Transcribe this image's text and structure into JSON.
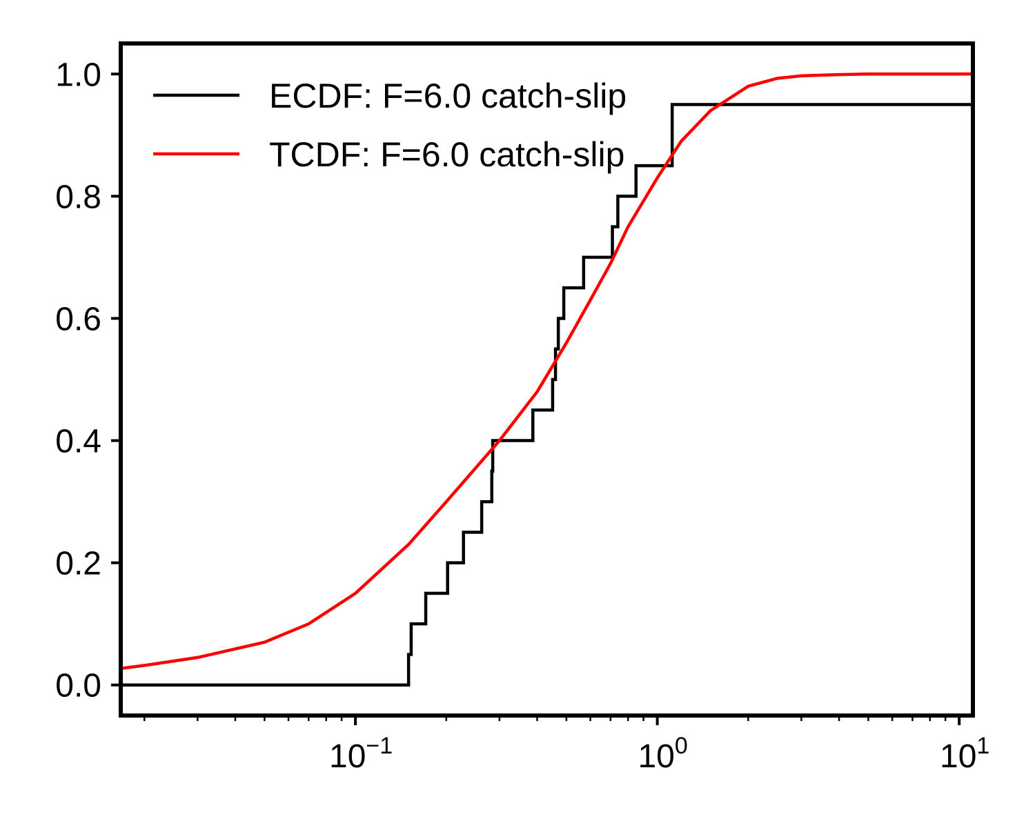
{
  "chart_data": {
    "type": "line",
    "title": "",
    "xlabel": "",
    "ylabel": "",
    "x_scale": "log",
    "xlim": [
      0.0167,
      11.1
    ],
    "ylim": [
      -0.05,
      1.05
    ],
    "grid": false,
    "legend_position": "top-left",
    "x_ticks": [
      {
        "value": 0.1,
        "base": "10",
        "exp": "−1"
      },
      {
        "value": 1,
        "base": "10",
        "exp": "0"
      },
      {
        "value": 10,
        "base": "10",
        "exp": "1"
      }
    ],
    "y_ticks": [
      {
        "value": 0.0,
        "label": "0.0"
      },
      {
        "value": 0.2,
        "label": "0.2"
      },
      {
        "value": 0.4,
        "label": "0.4"
      },
      {
        "value": 0.6,
        "label": "0.6"
      },
      {
        "value": 0.8,
        "label": "0.8"
      },
      {
        "value": 1.0,
        "label": "1.0"
      }
    ],
    "series": [
      {
        "name": "ECDF: F=6.0 catch-slip",
        "kind": "step",
        "color": "#000000",
        "x": [
          0.0167,
          0.15,
          0.153,
          0.171,
          0.202,
          0.228,
          0.262,
          0.283,
          0.285,
          0.387,
          0.45,
          0.46,
          0.47,
          0.49,
          0.57,
          0.71,
          0.74,
          0.85,
          1.12,
          11.1
        ],
        "y": [
          0.0,
          0.05,
          0.1,
          0.15,
          0.2,
          0.25,
          0.3,
          0.35,
          0.4,
          0.45,
          0.5,
          0.55,
          0.6,
          0.65,
          0.7,
          0.75,
          0.8,
          0.85,
          0.95,
          1.0
        ]
      },
      {
        "name": "TCDF: F=6.0 catch-slip",
        "kind": "curve",
        "color": "#ff0000",
        "x": [
          0.0167,
          0.02,
          0.03,
          0.05,
          0.07,
          0.1,
          0.15,
          0.2,
          0.3,
          0.4,
          0.5,
          0.6,
          0.7,
          0.8,
          1.0,
          1.2,
          1.5,
          2.0,
          2.5,
          3.0,
          4.0,
          5.0,
          7.0,
          11.1
        ],
        "y": [
          0.027,
          0.032,
          0.045,
          0.07,
          0.1,
          0.15,
          0.23,
          0.3,
          0.4,
          0.48,
          0.56,
          0.63,
          0.69,
          0.75,
          0.83,
          0.89,
          0.94,
          0.98,
          0.993,
          0.997,
          0.999,
          1.0,
          1.0,
          1.0
        ]
      }
    ]
  }
}
